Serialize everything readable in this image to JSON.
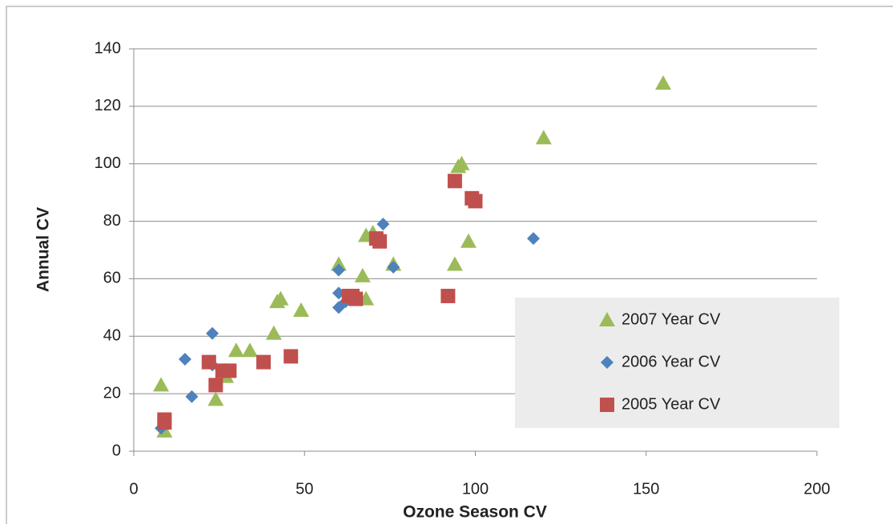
{
  "chart_data": {
    "type": "scatter",
    "x_label": "Ozone Season CV",
    "y_label": "Annual CV",
    "xlim": [
      0,
      200
    ],
    "xticks": [
      0,
      50,
      100,
      150,
      200
    ],
    "ylim": [
      0,
      140
    ],
    "yticks": [
      0,
      20,
      40,
      60,
      80,
      100,
      120,
      140
    ],
    "grid": true,
    "legend": "lower-right",
    "series": [
      {
        "name": "2007 Year CV",
        "color": "#9bbb59",
        "marker": "triangle",
        "x": [
          8,
          9,
          24,
          27,
          30,
          34,
          41,
          42,
          43,
          49,
          60,
          67,
          68,
          68,
          70,
          76,
          94,
          95,
          96,
          98,
          120,
          155
        ],
        "values": [
          23,
          7,
          18,
          26,
          35,
          35,
          41,
          52,
          53,
          49,
          65,
          61,
          53,
          75,
          76,
          65,
          65,
          99,
          100,
          73,
          109,
          128
        ]
      },
      {
        "name": "2006 Year CV",
        "color": "#4f81bd",
        "marker": "diamond",
        "x": [
          8,
          15,
          17,
          23,
          23,
          27,
          60,
          60,
          60,
          62,
          73,
          76,
          117,
          99
        ],
        "values": [
          8,
          32,
          19,
          41,
          30,
          28,
          63,
          55,
          50,
          52,
          79,
          64,
          74,
          88
        ]
      },
      {
        "name": "2005 Year CV",
        "color": "#c0504d",
        "marker": "square",
        "x": [
          9,
          9,
          22,
          24,
          26,
          28,
          38,
          46,
          63,
          64,
          65,
          71,
          72,
          92,
          94,
          99,
          100
        ],
        "values": [
          10,
          11,
          31,
          23,
          28,
          28,
          31,
          33,
          54,
          54,
          53,
          74,
          73,
          54,
          94,
          88,
          87
        ]
      }
    ]
  }
}
